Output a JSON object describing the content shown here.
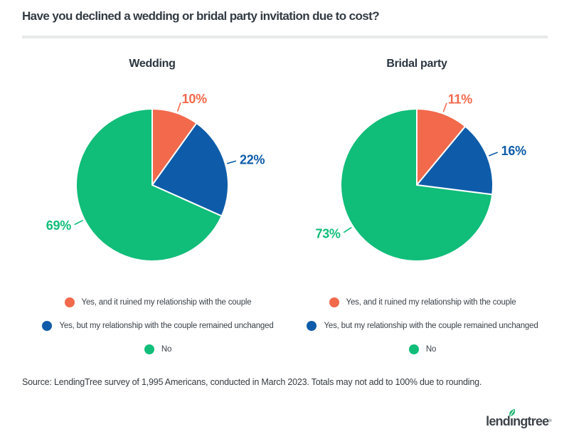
{
  "header": {
    "title": "Have you declined a wedding or bridal party invitation due to cost?"
  },
  "legend": {
    "items": [
      {
        "label": "Yes, and it ruined my relationship with the couple",
        "color": "#f2694c"
      },
      {
        "label": "Yes, but my relationship with the couple remained unchanged",
        "color": "#0e5ca9"
      },
      {
        "label": "No",
        "color": "#10bd79"
      }
    ]
  },
  "chart_data": [
    {
      "type": "pie",
      "title": "Wedding",
      "categories": [
        "Yes, and it ruined my relationship with the couple",
        "Yes, but my relationship with the couple remained unchanged",
        "No"
      ],
      "values": [
        10,
        22,
        69
      ],
      "labels": [
        "10%",
        "22%",
        "69%"
      ],
      "colors": [
        "#f2694c",
        "#0e5ca9",
        "#10bd79"
      ],
      "start_angle_deg": 0,
      "direction": "clockwise",
      "legend_position": "bottom"
    },
    {
      "type": "pie",
      "title": "Bridal party",
      "categories": [
        "Yes, and it ruined my relationship with the couple",
        "Yes, but my relationship with the couple remained unchanged",
        "No"
      ],
      "values": [
        11,
        16,
        73
      ],
      "labels": [
        "11%",
        "16%",
        "73%"
      ],
      "colors": [
        "#f2694c",
        "#0e5ca9",
        "#10bd79"
      ],
      "start_angle_deg": 0,
      "direction": "clockwise",
      "legend_position": "bottom"
    }
  ],
  "footer": {
    "source": "Source: LendingTree survey of 1,995 Americans, conducted in March 2023. Totals may not add to 100% due to rounding.",
    "logo_text": "lendingtree",
    "logo_reg_mark": "®"
  },
  "colors": {
    "orange": "#f2694c",
    "blue": "#0e5ca9",
    "green": "#10bd79",
    "title_text": "#333b44",
    "body_text": "#3a424a",
    "divider": "#e8eaea",
    "logo_text": "#3e444a",
    "logo_leaf": "#21b573",
    "background": "#ffffff"
  }
}
